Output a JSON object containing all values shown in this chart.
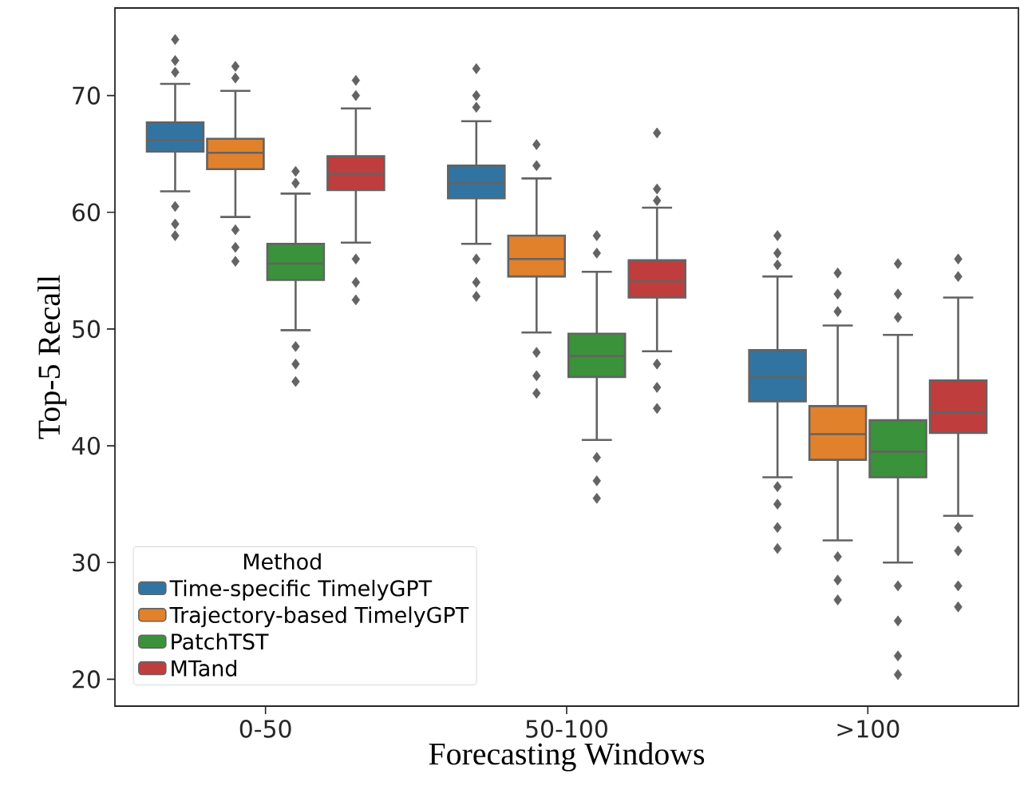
{
  "chart_data": {
    "type": "box",
    "xlabel": "Forecasting Windows",
    "ylabel": "Top-5 Recall",
    "legend_title": "Method",
    "legend": "bottom left",
    "marker": "diamond",
    "grid": false,
    "categories": [
      "0-50",
      "50-100",
      ">100"
    ],
    "ylim": [
      17.7,
      77.5
    ],
    "yticks": [
      20,
      30,
      40,
      50,
      60,
      70
    ],
    "series": [
      {
        "name": "Time-specific TimelyGPT",
        "color": "#3274a1",
        "boxes": [
          {
            "low": 61.8,
            "q1": 65.2,
            "median": 66.2,
            "q3": 67.7,
            "high": 71.0,
            "outliers": [
              74.8,
              73,
              72,
              58,
              59,
              60.5
            ]
          },
          {
            "low": 57.3,
            "q1": 61.2,
            "median": 62.5,
            "q3": 64.0,
            "high": 67.8,
            "outliers": [
              72.3,
              70,
              69,
              52.8,
              54,
              56
            ]
          },
          {
            "low": 37.3,
            "q1": 43.8,
            "median": 45.9,
            "q3": 48.2,
            "high": 54.5,
            "outliers": [
              58.0,
              56.5,
              55.5,
              31.2,
              33,
              35,
              36.5
            ]
          }
        ]
      },
      {
        "name": "Trajectory-based TimelyGPT",
        "color": "#e1812c",
        "boxes": [
          {
            "low": 59.6,
            "q1": 63.7,
            "median": 65.1,
            "q3": 66.3,
            "high": 70.4,
            "outliers": [
              72.5,
              71.5,
              55.8,
              57,
              58.5
            ]
          },
          {
            "low": 49.7,
            "q1": 54.5,
            "median": 56.0,
            "q3": 58.0,
            "high": 62.9,
            "outliers": [
              65.8,
              64,
              44.5,
              46,
              48
            ]
          },
          {
            "low": 31.9,
            "q1": 38.8,
            "median": 41.0,
            "q3": 43.4,
            "high": 50.3,
            "outliers": [
              54.8,
              53,
              51.5,
              26.8,
              28.5,
              30.5
            ]
          }
        ]
      },
      {
        "name": "PatchTST",
        "color": "#3a923a",
        "boxes": [
          {
            "low": 49.9,
            "q1": 54.2,
            "median": 55.6,
            "q3": 57.3,
            "high": 61.6,
            "outliers": [
              63.5,
              62.5,
              45.5,
              47,
              48.5
            ]
          },
          {
            "low": 40.5,
            "q1": 45.9,
            "median": 47.7,
            "q3": 49.6,
            "high": 54.9,
            "outliers": [
              58.0,
              56.5,
              35.5,
              37,
              39
            ]
          },
          {
            "low": 30.0,
            "q1": 37.3,
            "median": 39.5,
            "q3": 42.2,
            "high": 49.5,
            "outliers": [
              55.6,
              53,
              51,
              20.4,
              22,
              25,
              28
            ]
          }
        ]
      },
      {
        "name": "MTand",
        "color": "#c03d3e",
        "boxes": [
          {
            "low": 57.4,
            "q1": 61.9,
            "median": 63.3,
            "q3": 64.8,
            "high": 68.9,
            "outliers": [
              71.3,
              70,
              52.5,
              54,
              56
            ]
          },
          {
            "low": 48.1,
            "q1": 52.7,
            "median": 54.1,
            "q3": 55.9,
            "high": 60.4,
            "outliers": [
              66.8,
              62,
              61,
              43.2,
              45,
              47
            ]
          },
          {
            "low": 34.0,
            "q1": 41.1,
            "median": 42.9,
            "q3": 45.6,
            "high": 52.7,
            "outliers": [
              56.0,
              54.5,
              26.2,
              28,
              31,
              33
            ]
          }
        ]
      }
    ]
  }
}
